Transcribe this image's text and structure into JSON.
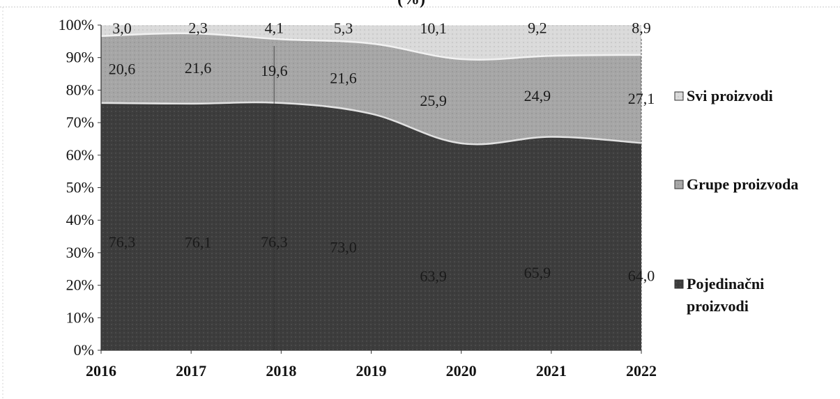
{
  "chart_data": {
    "type": "area",
    "stacked": true,
    "percent": true,
    "title": "(%)",
    "categories": [
      "2016",
      "2017",
      "2018",
      "2019",
      "2020",
      "2021",
      "2022"
    ],
    "x_tick_labels": [
      "2016",
      "2017",
      "2018",
      "2019",
      "2020",
      "2021",
      "2022"
    ],
    "y_tick_labels": [
      "0%",
      "10%",
      "20%",
      "30%",
      "40%",
      "50%",
      "60%",
      "70%",
      "80%",
      "90%",
      "100%"
    ],
    "ylim": [
      0,
      100
    ],
    "grid": false,
    "legend_position": "right",
    "series": [
      {
        "name": "Pojedinačni proizvodi",
        "values": [
          76.3,
          76.1,
          76.3,
          73.0,
          63.9,
          65.9,
          64.0
        ],
        "labels": [
          "76,3",
          "76,1",
          "76,3",
          "73,0",
          "63,9",
          "65,9",
          "64,0"
        ],
        "color": "#3d3d3d"
      },
      {
        "name": "Grupe proizvoda",
        "values": [
          20.6,
          21.6,
          19.6,
          21.6,
          25.9,
          24.9,
          27.1
        ],
        "labels": [
          "20,6",
          "21,6",
          "19,6",
          "21,6",
          "25,9",
          "24,9",
          "27,1"
        ],
        "color": "#a6a6a6"
      },
      {
        "name": "Svi proizvodi",
        "values": [
          3.0,
          2.3,
          4.1,
          5.3,
          10.1,
          9.2,
          8.9
        ],
        "labels": [
          "3,0",
          "2,3",
          "4,1",
          "5,3",
          "10,1",
          "9,2",
          "8,9"
        ],
        "color": "#dadada"
      }
    ],
    "legend": [
      "Svi proizvodi",
      "Grupe proizvoda",
      "Pojedinačni proizvodi"
    ]
  }
}
